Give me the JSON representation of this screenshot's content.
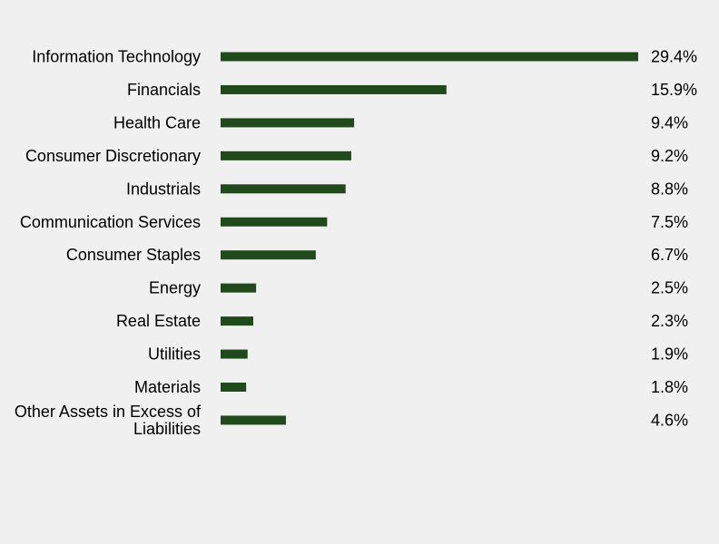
{
  "chart_data": {
    "type": "bar",
    "orientation": "horizontal",
    "categories": [
      "Information Technology",
      "Financials",
      "Health Care",
      "Consumer Discretionary",
      "Industrials",
      "Communication Services",
      "Consumer Staples",
      "Energy",
      "Real Estate",
      "Utilities",
      "Materials",
      "Other Assets in Excess of Liabilities"
    ],
    "values": [
      29.4,
      15.9,
      9.4,
      9.2,
      8.8,
      7.5,
      6.7,
      2.5,
      2.3,
      1.9,
      1.8,
      4.6
    ],
    "value_labels": [
      "29.4%",
      "15.9%",
      "9.4%",
      "9.2%",
      "8.8%",
      "7.5%",
      "6.7%",
      "2.5%",
      "2.3%",
      "1.9%",
      "1.8%",
      "4.6%"
    ],
    "title": "",
    "xlabel": "",
    "ylabel": "",
    "xlim": [
      0,
      29.4
    ],
    "grid": false,
    "legend": "none",
    "bar_color": "#214a1c",
    "background_color": "#f0f0f0"
  }
}
